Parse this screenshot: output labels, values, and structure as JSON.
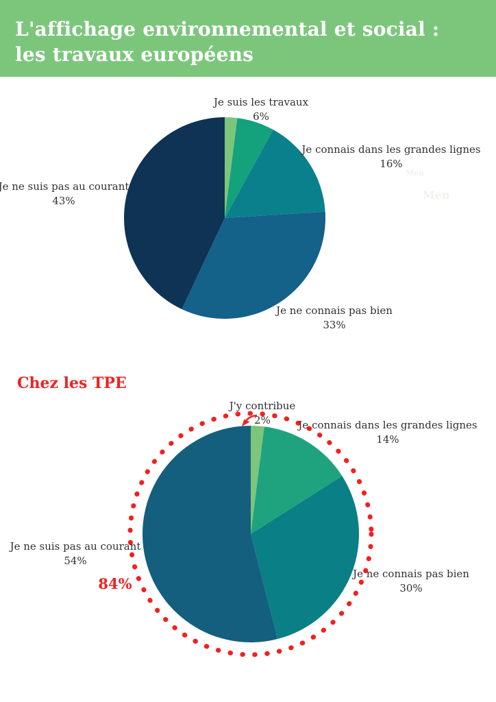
{
  "header": {
    "title_line1": "L'affichage environnemental et social :",
    "title_line2": "les travaux européens",
    "bg_color": "#7cc67c",
    "text_color": "#ffffff"
  },
  "colors": {
    "accent_red": "#ef2222",
    "label_text": "#303030",
    "background": "#ffffff"
  },
  "watermarks": [
    {
      "text": "Men"
    },
    {
      "text": "Men"
    }
  ],
  "chart_data": [
    {
      "type": "pie",
      "title": "",
      "unit": "%",
      "labels": [
        "",
        "Je suis les travaux",
        "Je connais dans les grandes lignes",
        "Je ne connais pas bien",
        "Je ne suis pas au courant"
      ],
      "values": [
        2,
        6,
        16,
        33,
        43
      ],
      "display_pcts": [
        "",
        "6%",
        "16%",
        "33%",
        "43%"
      ],
      "colors": [
        "#7cc57b",
        "#13a27b",
        "#0a808c",
        "#14618a",
        "#0f3355"
      ],
      "start_angle_deg": 0,
      "direction": "clockwise",
      "legend": "none"
    },
    {
      "type": "pie",
      "section_title": "Chez les TPE",
      "unit": "%",
      "labels": [
        "J'y contribue",
        "Je connais dans les grandes lignes",
        "Je ne connais pas bien",
        "Je ne suis pas au courant"
      ],
      "values": [
        2,
        14,
        30,
        54
      ],
      "display_pcts": [
        "2%",
        "14%",
        "30%",
        "54%"
      ],
      "colors": [
        "#7cc57b",
        "#1fa37f",
        "#0a7f86",
        "#145f7e"
      ],
      "start_angle_deg": 0,
      "direction": "clockwise",
      "legend": "none",
      "annotation": {
        "text": "84%",
        "ring": true,
        "ring_color": "#f32020"
      }
    }
  ]
}
